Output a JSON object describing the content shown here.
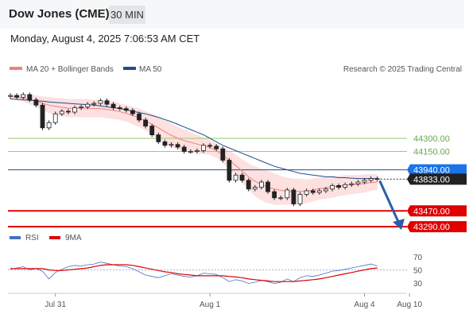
{
  "header": {
    "title": "Dow Jones (CME)",
    "interval": "30 MIN",
    "datetime": "Monday, August 4, 2025 7:06:53 AM CET"
  },
  "legend": {
    "ma20_label": "MA 20 + Bollinger Bands",
    "ma50_label": "MA 50",
    "source": "Research © 2025 Trading Central",
    "ma20_color": "#f08080",
    "ma50_color": "#1f4e8c"
  },
  "rsi_legend": {
    "rsi_label": "RSI",
    "ma_label": "9MA",
    "rsi_color": "#4472c4",
    "ma_color": "#e00000"
  },
  "colors": {
    "resistance": "#9acd6a",
    "pivot": "#1f4e8c",
    "support": "#e00000",
    "bullish_candle": "#ffffff",
    "bearish_candle": "#222222",
    "band_fill": "#fde0e0",
    "arrow": "#2b5ea7",
    "pivot_badge": "#1a73e8",
    "last_badge": "#222222"
  },
  "levels": [
    {
      "value": 44300,
      "label": "44300.00",
      "type": "resistance"
    },
    {
      "value": 44150,
      "label": "44150.00",
      "type": "resistance"
    },
    {
      "value": 43940,
      "label": "43940.00",
      "type": "pivot"
    },
    {
      "value": 43833,
      "label": "43833.00",
      "type": "last"
    },
    {
      "value": 43470,
      "label": "43470.00",
      "type": "support"
    },
    {
      "value": 43290,
      "label": "43290.00",
      "type": "support"
    }
  ],
  "chart_data": [
    {
      "type": "candlestick",
      "title": "Dow Jones (CME)",
      "x_labels": [
        "Jul 31",
        "Aug 1",
        "Aug 4",
        "Aug 10"
      ],
      "x_label_index": [
        7,
        31,
        55,
        62
      ],
      "close": [
        44790,
        44770,
        44800,
        44740,
        44680,
        44420,
        44480,
        44580,
        44610,
        44600,
        44650,
        44660,
        44690,
        44700,
        44730,
        44690,
        44650,
        44640,
        44620,
        44580,
        44510,
        44440,
        44340,
        44260,
        44220,
        44230,
        44200,
        44150,
        44150,
        44160,
        44220,
        44210,
        44180,
        44050,
        43820,
        43880,
        43820,
        43720,
        43740,
        43800,
        43690,
        43620,
        43620,
        43710,
        43550,
        43660,
        43700,
        43680,
        43700,
        43720,
        43760,
        43740,
        43770,
        43780,
        43800,
        43820,
        43840,
        43833
      ],
      "bb_upper": [
        44800,
        44800,
        44800,
        44800,
        44790,
        44780,
        44770,
        44760,
        44760,
        44750,
        44750,
        44750,
        44750,
        44740,
        44740,
        44730,
        44720,
        44700,
        44680,
        44660,
        44640,
        44610,
        44580,
        44550,
        44510,
        44470,
        44430,
        44400,
        44370,
        44340,
        44310,
        44280,
        44240,
        44200,
        44160,
        44110,
        44060,
        44010,
        43980,
        43950,
        43930,
        43900,
        43870,
        43850,
        43840,
        43840,
        43830,
        43840,
        43850,
        43860,
        43870,
        43870,
        43880,
        43880,
        43880,
        43890,
        43890,
        43890
      ],
      "bb_lower": [
        44760,
        44740,
        44720,
        44690,
        44660,
        44620,
        44590,
        44570,
        44550,
        44540,
        44540,
        44540,
        44540,
        44540,
        44540,
        44530,
        44520,
        44510,
        44490,
        44460,
        44430,
        44390,
        44340,
        44290,
        44240,
        44200,
        44170,
        44150,
        44140,
        44130,
        44120,
        44110,
        44080,
        44020,
        43940,
        43870,
        43790,
        43710,
        43640,
        43590,
        43560,
        43540,
        43540,
        43540,
        43540,
        43550,
        43560,
        43580,
        43600,
        43610,
        43620,
        43640,
        43650,
        43660,
        43670,
        43680,
        43700,
        43710
      ],
      "ma50": [
        44750,
        44745,
        44740,
        44735,
        44730,
        44725,
        44715,
        44710,
        44705,
        44700,
        44695,
        44690,
        44685,
        44680,
        44670,
        44660,
        44650,
        44640,
        44625,
        44610,
        44595,
        44580,
        44560,
        44540,
        44515,
        44490,
        44460,
        44430,
        44400,
        44370,
        44340,
        44300,
        44260,
        44220,
        44190,
        44160,
        44130,
        44100,
        44070,
        44040,
        44010,
        43980,
        43960,
        43940,
        43920,
        43900,
        43890,
        43880,
        43870,
        43860,
        43860,
        43850,
        43850,
        43845,
        43840,
        43840,
        43840,
        43840
      ],
      "projection": {
        "from": 43833,
        "to": 43290
      },
      "ylim": [
        43200,
        45000
      ]
    },
    {
      "type": "line",
      "title": "RSI",
      "series": [
        {
          "name": "RSI",
          "values": [
            51,
            53,
            55,
            50,
            52,
            48,
            36,
            46,
            51,
            55,
            57,
            56,
            58,
            59,
            62,
            60,
            58,
            56,
            55,
            52,
            47,
            42,
            40,
            38,
            41,
            44,
            42,
            40,
            39,
            41,
            45,
            44,
            43,
            38,
            32,
            35,
            33,
            29,
            31,
            34,
            32,
            29,
            31,
            36,
            32,
            38,
            41,
            40,
            42,
            45,
            48,
            49,
            51,
            53,
            55,
            57,
            59,
            56
          ]
        },
        {
          "name": "9MA",
          "values": [
            52,
            52,
            52,
            52,
            52,
            52,
            50,
            49,
            49,
            50,
            51,
            52,
            53,
            55,
            57,
            58,
            58,
            58,
            58,
            57,
            55,
            53,
            51,
            49,
            47,
            46,
            44,
            43,
            42,
            41,
            41,
            41,
            41,
            41,
            40,
            39,
            38,
            36,
            35,
            34,
            33,
            32,
            32,
            32,
            32,
            33,
            34,
            35,
            36,
            38,
            40,
            42,
            44,
            46,
            48,
            50,
            52,
            53
          ]
        }
      ],
      "ticks": [
        70,
        50,
        30
      ],
      "reference_line": 50,
      "ylim": [
        20,
        80
      ]
    }
  ]
}
